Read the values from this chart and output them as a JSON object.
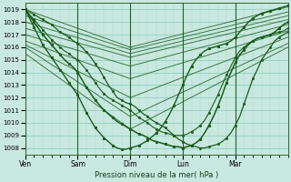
{
  "background_color": "#c8e8e0",
  "grid_color_major": "#88ccbb",
  "grid_color_minor": "#aad9cc",
  "line_color": "#1a5c1a",
  "ylim": [
    1007.5,
    1019.5
  ],
  "yticks": [
    1008,
    1009,
    1010,
    1011,
    1012,
    1013,
    1014,
    1015,
    1016,
    1017,
    1018,
    1019
  ],
  "day_labels": [
    "Ven",
    "Sam",
    "Dim",
    "Lun",
    "Mar"
  ],
  "day_positions": [
    0,
    24,
    48,
    72,
    96
  ],
  "xlim": [
    0,
    120
  ],
  "xlabel": "Pression niveau de la mer( hPa )",
  "ensemble_lines": [
    {
      "x0": 0,
      "y0": 1019.0,
      "x1": 48,
      "y1": 1016.0,
      "x2": 120,
      "y2": 1019.2
    },
    {
      "x0": 0,
      "y0": 1018.5,
      "x1": 48,
      "y1": 1015.8,
      "x2": 120,
      "y2": 1018.8
    },
    {
      "x0": 0,
      "y0": 1018.0,
      "x1": 48,
      "y1": 1015.5,
      "x2": 120,
      "y2": 1018.5
    },
    {
      "x0": 0,
      "y0": 1017.5,
      "x1": 48,
      "y1": 1015.2,
      "x2": 120,
      "y2": 1018.2
    },
    {
      "x0": 0,
      "y0": 1017.0,
      "x1": 48,
      "y1": 1014.5,
      "x2": 120,
      "y2": 1017.8
    },
    {
      "x0": 0,
      "y0": 1016.5,
      "x1": 48,
      "y1": 1013.5,
      "x2": 120,
      "y2": 1017.3
    },
    {
      "x0": 0,
      "y0": 1016.2,
      "x1": 48,
      "y1": 1012.0,
      "x2": 120,
      "y2": 1016.8
    },
    {
      "x0": 0,
      "y0": 1016.0,
      "x1": 48,
      "y1": 1010.5,
      "x2": 120,
      "y2": 1016.3
    },
    {
      "x0": 0,
      "y0": 1015.5,
      "x1": 48,
      "y1": 1009.5,
      "x2": 120,
      "y2": 1016.0
    }
  ],
  "main_x": [
    0,
    2,
    4,
    6,
    8,
    10,
    12,
    14,
    16,
    18,
    20,
    22,
    24,
    26,
    28,
    30,
    32,
    34,
    36,
    38,
    40,
    42,
    44,
    46,
    48,
    50,
    52,
    54,
    56,
    58,
    60,
    62,
    64,
    66,
    68,
    70,
    72,
    74,
    76,
    78,
    80,
    82,
    84,
    86,
    88,
    90,
    92,
    94,
    96,
    98,
    100,
    102,
    104,
    106,
    108,
    110,
    112,
    114,
    116,
    118,
    120
  ],
  "main_y": [
    1019.0,
    1018.8,
    1018.6,
    1018.4,
    1018.2,
    1018.0,
    1017.8,
    1017.5,
    1017.2,
    1017.0,
    1016.8,
    1016.5,
    1016.3,
    1016.0,
    1015.6,
    1015.2,
    1014.7,
    1014.2,
    1013.6,
    1013.0,
    1012.5,
    1012.0,
    1011.8,
    1011.6,
    1011.5,
    1011.3,
    1011.0,
    1010.7,
    1010.5,
    1010.2,
    1010.0,
    1009.8,
    1009.6,
    1009.3,
    1009.0,
    1008.7,
    1008.5,
    1008.3,
    1008.2,
    1008.1,
    1008.0,
    1008.0,
    1008.1,
    1008.2,
    1008.3,
    1008.5,
    1008.8,
    1009.2,
    1009.8,
    1010.5,
    1011.5,
    1012.5,
    1013.5,
    1014.2,
    1015.0,
    1015.5,
    1016.0,
    1016.5,
    1016.8,
    1017.0,
    1017.2
  ],
  "detail_x": [
    0,
    2,
    4,
    6,
    8,
    10,
    12,
    14,
    16,
    18,
    20,
    22,
    24,
    26,
    28,
    30,
    32,
    34,
    36,
    38,
    40,
    42,
    44,
    46,
    48,
    50,
    52,
    54,
    56,
    58,
    60,
    62,
    64,
    66,
    68,
    70,
    72,
    74,
    76,
    78,
    80,
    82,
    84,
    86,
    88,
    90,
    92,
    94,
    96,
    98,
    100,
    102,
    104,
    106,
    108,
    110,
    112,
    114,
    116,
    118,
    120
  ],
  "detail_y": [
    1019.0,
    1018.6,
    1018.2,
    1017.8,
    1017.4,
    1017.0,
    1016.6,
    1016.3,
    1016.0,
    1015.7,
    1015.5,
    1015.2,
    1015.0,
    1014.6,
    1014.2,
    1013.7,
    1013.2,
    1012.7,
    1012.3,
    1012.0,
    1011.8,
    1011.6,
    1011.4,
    1011.2,
    1011.0,
    1010.7,
    1010.4,
    1010.2,
    1010.0,
    1009.7,
    1009.5,
    1009.3,
    1009.2,
    1009.1,
    1009.0,
    1009.0,
    1009.0,
    1009.1,
    1009.3,
    1009.5,
    1009.8,
    1010.2,
    1010.8,
    1011.5,
    1012.2,
    1013.0,
    1013.8,
    1014.5,
    1015.2,
    1015.7,
    1016.0,
    1016.3,
    1016.5,
    1016.7,
    1016.8,
    1016.9,
    1017.0,
    1017.1,
    1017.2,
    1017.3,
    1017.5
  ],
  "bold_x": [
    0,
    2,
    4,
    6,
    8,
    10,
    12,
    14,
    16,
    18,
    20,
    22,
    24,
    26,
    28,
    30,
    32,
    34,
    36,
    38,
    40,
    42,
    44,
    46,
    48,
    50,
    52,
    54,
    56,
    58,
    60,
    62,
    64,
    66,
    68,
    70,
    72,
    74,
    76,
    78,
    80,
    82,
    84,
    86,
    88,
    90,
    92,
    94,
    96,
    98,
    100,
    102,
    104,
    106,
    108,
    110,
    112,
    114,
    116,
    118,
    120
  ],
  "bold_y": [
    1019.0,
    1018.5,
    1018.0,
    1017.5,
    1017.0,
    1016.6,
    1016.2,
    1015.8,
    1015.4,
    1015.0,
    1014.7,
    1014.4,
    1014.0,
    1013.4,
    1012.8,
    1012.3,
    1011.8,
    1011.4,
    1011.0,
    1010.7,
    1010.4,
    1010.1,
    1009.9,
    1009.7,
    1009.5,
    1009.3,
    1009.1,
    1009.0,
    1008.8,
    1008.6,
    1008.5,
    1008.4,
    1008.3,
    1008.2,
    1008.1,
    1008.1,
    1008.0,
    1008.1,
    1008.2,
    1008.4,
    1008.7,
    1009.2,
    1009.8,
    1010.5,
    1011.3,
    1012.2,
    1013.2,
    1014.0,
    1014.8,
    1015.4,
    1015.8,
    1016.2,
    1016.5,
    1016.7,
    1016.8,
    1016.9,
    1017.0,
    1017.2,
    1017.5,
    1017.8,
    1018.0
  ],
  "sharp_x": [
    0,
    2,
    4,
    6,
    8,
    10,
    12,
    14,
    16,
    18,
    20,
    22,
    24,
    26,
    28,
    30,
    32,
    34,
    36,
    38,
    40,
    42,
    44,
    46,
    48,
    50,
    52,
    54,
    56,
    58,
    60,
    62,
    64,
    66,
    68,
    70,
    72,
    74,
    76,
    78,
    80,
    82,
    84,
    86,
    88,
    90,
    92,
    94,
    96,
    98,
    100,
    102,
    104,
    106,
    108,
    110,
    112,
    114,
    116,
    118,
    120
  ],
  "sharp_y": [
    1019.0,
    1018.3,
    1017.6,
    1016.9,
    1016.2,
    1015.7,
    1015.2,
    1014.7,
    1014.2,
    1013.7,
    1013.2,
    1012.7,
    1012.2,
    1011.5,
    1010.8,
    1010.2,
    1009.6,
    1009.2,
    1008.8,
    1008.5,
    1008.2,
    1008.0,
    1007.9,
    1007.9,
    1008.0,
    1008.1,
    1008.2,
    1008.4,
    1008.6,
    1008.9,
    1009.2,
    1009.6,
    1010.1,
    1010.7,
    1011.4,
    1012.2,
    1013.0,
    1013.8,
    1014.5,
    1015.0,
    1015.4,
    1015.7,
    1015.9,
    1016.0,
    1016.1,
    1016.2,
    1016.3,
    1016.5,
    1016.8,
    1017.2,
    1017.6,
    1018.0,
    1018.3,
    1018.5,
    1018.7,
    1018.8,
    1018.9,
    1019.0,
    1019.1,
    1019.2,
    1019.3
  ]
}
